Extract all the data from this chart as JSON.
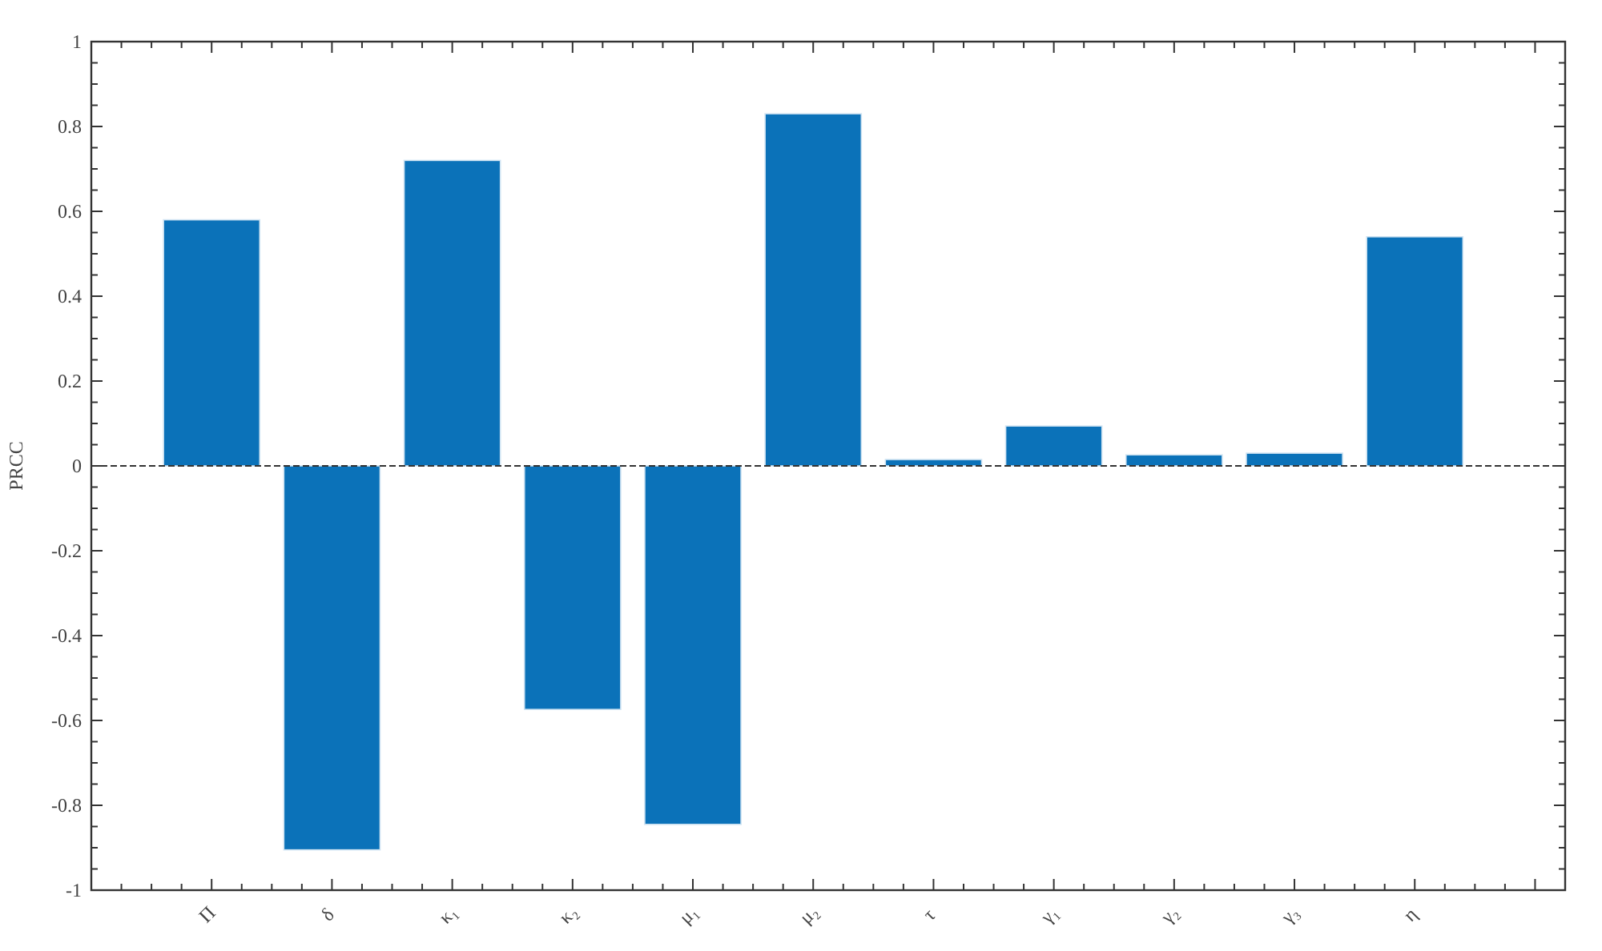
{
  "chart_data": {
    "type": "bar",
    "ylabel": "PRCC",
    "categories": [
      "Π",
      "δ",
      "κ₁",
      "κ₂",
      "μ₁",
      "μ₂",
      "τ",
      "γ₁",
      "γ₂",
      "γ₃",
      "η"
    ],
    "values": [
      0.58,
      -0.905,
      0.72,
      -0.574,
      -0.845,
      0.83,
      0.015,
      0.094,
      0.026,
      0.03,
      0.54
    ],
    "color": "#0b72b9",
    "ylim": [
      -1,
      1
    ],
    "yticks": [
      -1,
      -0.8,
      -0.6,
      -0.4,
      -0.2,
      0,
      0.2,
      0.4,
      0.6,
      0.8,
      1
    ],
    "grid": false,
    "ref_lines": [
      {
        "axis": "y",
        "value": 0,
        "line_style": "dashed",
        "color": "#333333"
      }
    ]
  }
}
